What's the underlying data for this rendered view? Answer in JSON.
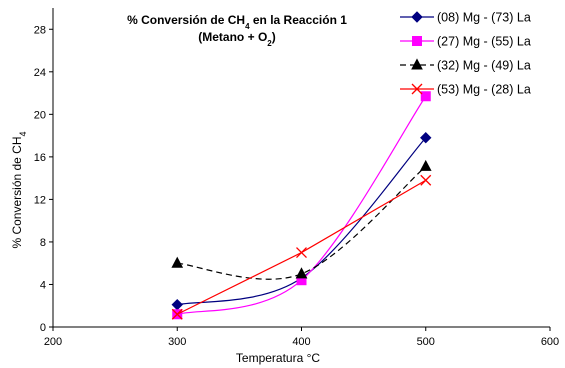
{
  "chart_data": {
    "type": "scatter",
    "title_line1": "% Conversión de CH4 en la Reacción 1",
    "title_line2": "(Metano + O2)",
    "xlabel": "Temperatura °C",
    "ylabel": "% Conversión de CH4",
    "xlim": [
      200,
      600
    ],
    "ylim": [
      0,
      30
    ],
    "xticks": [
      200,
      300,
      400,
      500,
      600
    ],
    "yticks": [
      0,
      4,
      8,
      12,
      16,
      20,
      24,
      28
    ],
    "grid": false,
    "legend_position": "top-right",
    "series": [
      {
        "name": "(08) Mg - (73) La",
        "color": "#000080",
        "marker": "diamond",
        "line": "smooth-solid",
        "x": [
          300,
          400,
          500
        ],
        "y": [
          2.1,
          4.6,
          17.8
        ]
      },
      {
        "name": "(27) Mg - (55) La",
        "color": "#FF00FF",
        "marker": "square",
        "line": "smooth-solid",
        "x": [
          300,
          400,
          500
        ],
        "y": [
          1.2,
          4.4,
          21.7
        ]
      },
      {
        "name": "(32) Mg - (49) La",
        "color": "#000000",
        "marker": "triangle",
        "line": "smooth-dashed",
        "x": [
          300,
          400,
          500
        ],
        "y": [
          6.0,
          5.0,
          15.1
        ]
      },
      {
        "name": "(53) Mg - (28) La",
        "color": "#FF0000",
        "marker": "x",
        "line": "straight-solid",
        "x": [
          300,
          400,
          500
        ],
        "y": [
          1.2,
          7.0,
          13.8
        ]
      }
    ]
  }
}
